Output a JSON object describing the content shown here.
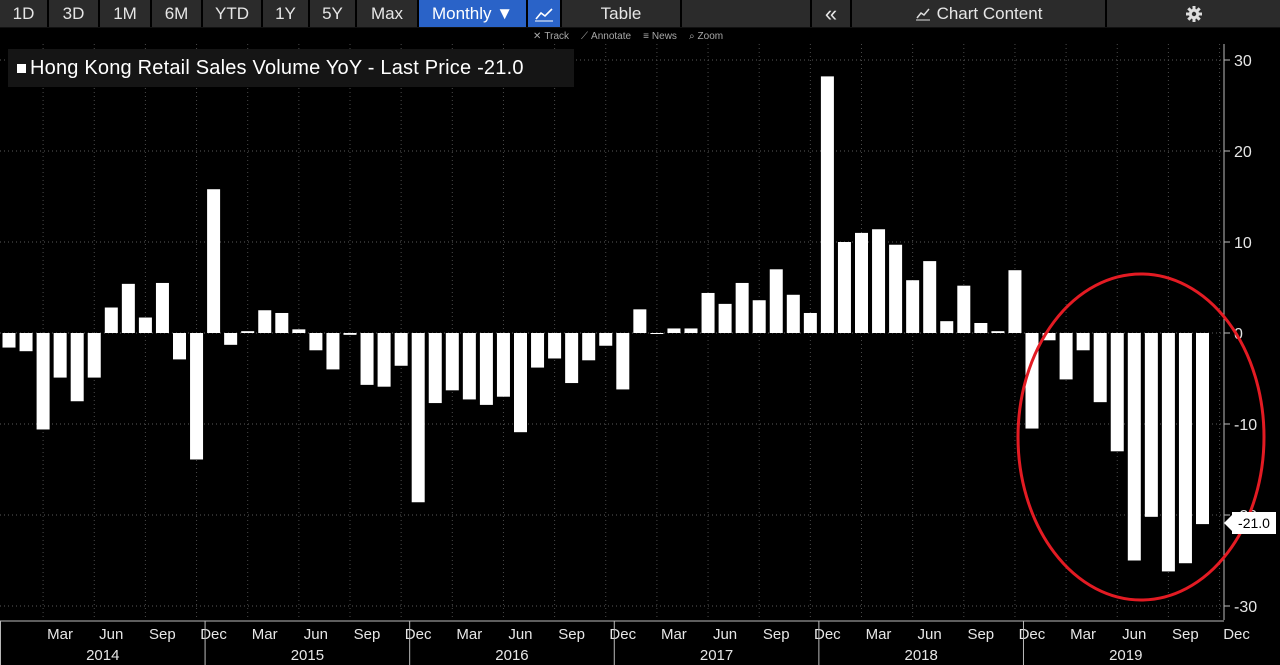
{
  "toolbar": {
    "ranges": [
      "1D",
      "3D",
      "1M",
      "6M",
      "YTD",
      "1Y",
      "5Y",
      "Max"
    ],
    "frequency_label": "Monthly ▼",
    "table_label": "Table",
    "collapse_label": "«",
    "chart_content_label": "Chart Content",
    "settings_icon": "gear-icon",
    "chart_type_icon": "line-chart-icon"
  },
  "subtools": {
    "track": "Track",
    "annotate": "Annotate",
    "news": "News",
    "zoom": "Zoom"
  },
  "legend": {
    "label": "Hong Kong Retail Sales Volume YoY - Last Price -21.0"
  },
  "last_value_tag": "-21.0",
  "colors": {
    "bar": "#ffffff",
    "background": "#000000",
    "toolbar": "#2b2b2b",
    "active": "#2a63c8",
    "circle": "#e31b23"
  },
  "chart_data": {
    "type": "bar",
    "title": "Hong Kong Retail Sales Volume YoY",
    "ylim": [
      -32,
      33
    ],
    "yticks": [
      30,
      20,
      10,
      0,
      -10,
      -20,
      -30
    ],
    "month_tick_labels": [
      "Mar",
      "Jun",
      "Sep",
      "Dec"
    ],
    "years": [
      "2014",
      "2015",
      "2016",
      "2017",
      "2018",
      "2019"
    ],
    "series_start": "2014-01",
    "values": [
      -1.6,
      -2.0,
      -10.6,
      -4.9,
      -7.5,
      -4.9,
      2.8,
      5.4,
      1.7,
      5.5,
      -2.9,
      -13.9,
      15.8,
      -1.3,
      0.2,
      2.5,
      2.2,
      0.4,
      -1.9,
      -4.0,
      -0.2,
      -5.7,
      -5.9,
      -3.6,
      -18.6,
      -7.7,
      -6.3,
      -7.3,
      -7.9,
      -7.0,
      -10.9,
      -3.8,
      -2.8,
      -5.5,
      -3.0,
      -1.4,
      -6.2,
      2.6,
      -0.1,
      0.5,
      0.5,
      4.4,
      3.2,
      5.5,
      3.6,
      7.0,
      4.2,
      2.2,
      28.2,
      10.0,
      11.0,
      11.4,
      9.7,
      5.8,
      7.9,
      1.3,
      5.2,
      1.1,
      0.2,
      6.9,
      -10.5,
      -0.8,
      -5.1,
      -1.9,
      -7.6,
      -13.0,
      -25.0,
      -20.2,
      -26.2,
      -25.3,
      -21.0
    ],
    "last_price": -21.0,
    "annotation": "circle"
  }
}
